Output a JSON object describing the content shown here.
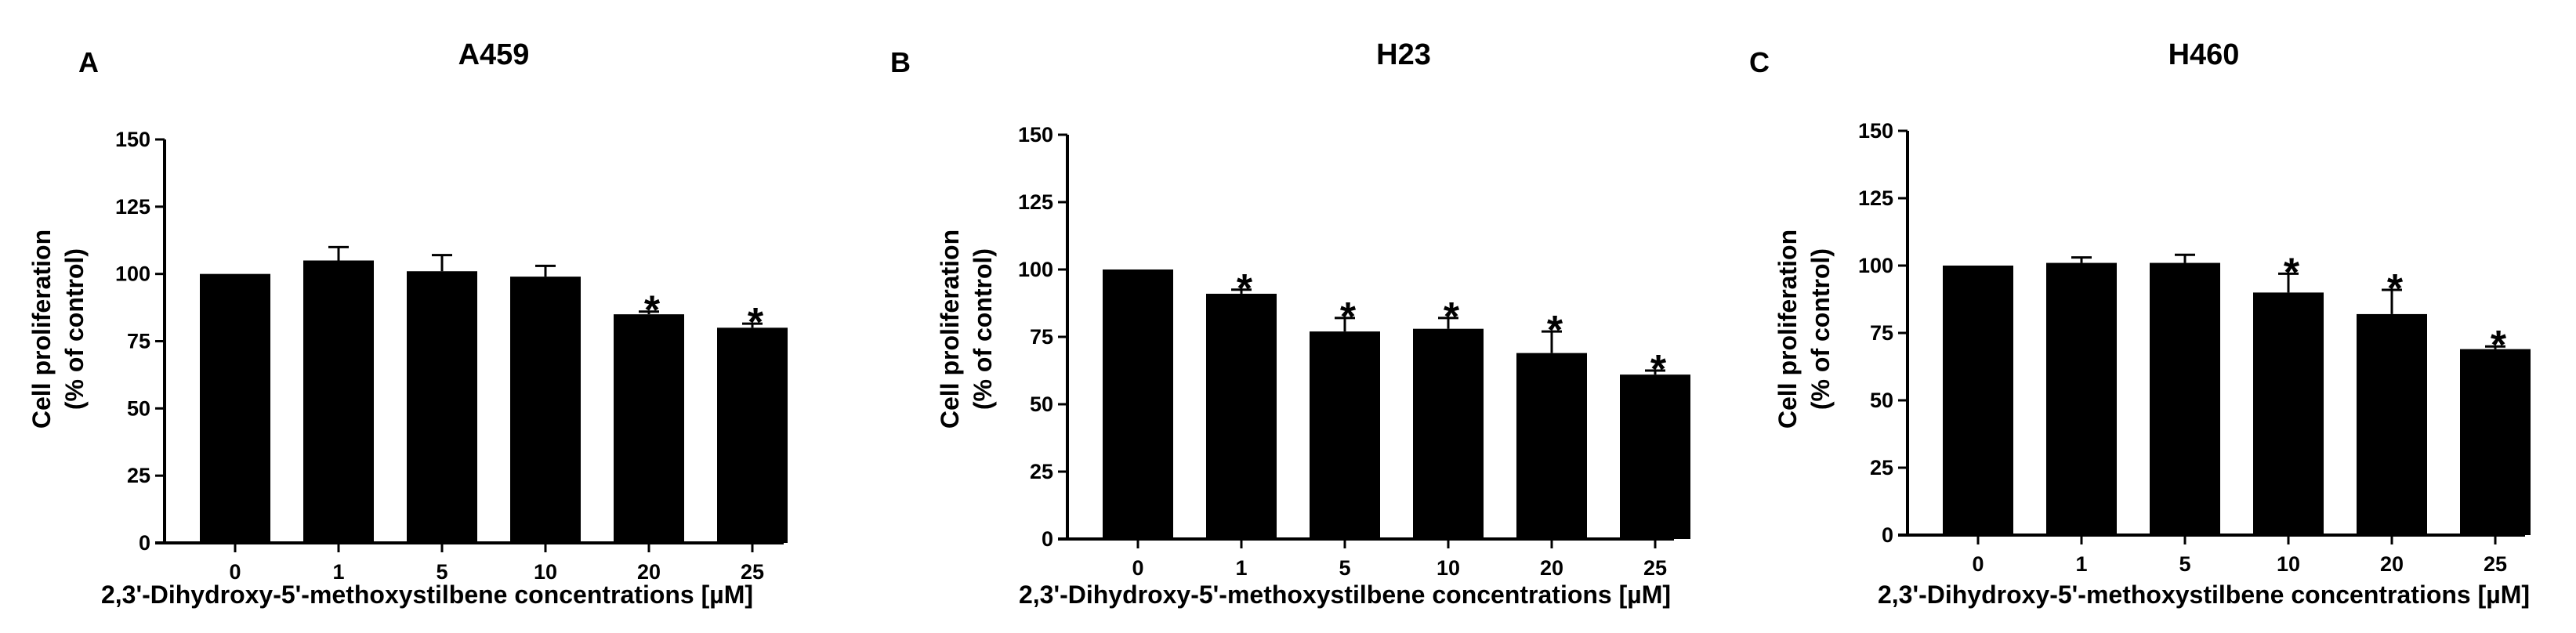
{
  "chart_data": [
    {
      "type": "bar",
      "panel_letter": "A",
      "title": "A459",
      "xlabel": "2,3'-Dihydroxy-5'-methoxystilbene concentrations [µM]",
      "ylabel_line1": "Cell proliferation",
      "ylabel_line2": "(% of control)",
      "ylim": [
        0,
        150
      ],
      "yticks": [
        0,
        25,
        50,
        75,
        100,
        125,
        150
      ],
      "categories": [
        "0",
        "1",
        "5",
        "10",
        "20",
        "25"
      ],
      "values": [
        100,
        105,
        101,
        99,
        85,
        80
      ],
      "errors": [
        0,
        5,
        6,
        4,
        1,
        1.5
      ],
      "significance": [
        "",
        "",
        "",
        "",
        "*",
        "*"
      ]
    },
    {
      "type": "bar",
      "panel_letter": "B",
      "title": "H23",
      "xlabel": "2,3'-Dihydroxy-5'-methoxystilbene concentrations [µM]",
      "ylabel_line1": "Cell proliferation",
      "ylabel_line2": "(% of control)",
      "ylim": [
        0,
        150
      ],
      "yticks": [
        0,
        25,
        50,
        75,
        100,
        125,
        150
      ],
      "categories": [
        "0",
        "1",
        "5",
        "10",
        "20",
        "25"
      ],
      "values": [
        100,
        91,
        77,
        78,
        69,
        61
      ],
      "errors": [
        0,
        1.5,
        5,
        4,
        8,
        1.5
      ],
      "significance": [
        "",
        "*",
        "*",
        "*",
        "*",
        "*"
      ]
    },
    {
      "type": "bar",
      "panel_letter": "C",
      "title": "H460",
      "xlabel": "2,3'-Dihydroxy-5'-methoxystilbene concentrations [µM]",
      "ylabel_line1": "Cell proliferation",
      "ylabel_line2": "(% of control)",
      "ylim": [
        0,
        150
      ],
      "yticks": [
        0,
        25,
        50,
        75,
        100,
        125,
        150
      ],
      "categories": [
        "0",
        "1",
        "5",
        "10",
        "20",
        "25"
      ],
      "values": [
        100,
        101,
        101,
        90,
        82,
        69
      ],
      "errors": [
        0,
        2,
        3,
        7,
        9,
        1
      ],
      "significance": [
        "",
        "",
        "",
        "*",
        "*",
        "*"
      ]
    }
  ]
}
